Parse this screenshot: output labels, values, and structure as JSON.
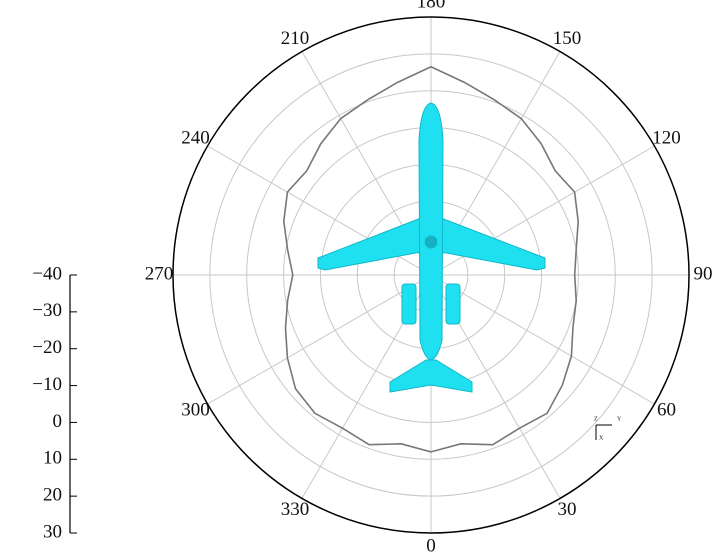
{
  "chart_data": {
    "type": "polar-line",
    "theta": [
      0,
      10,
      20,
      30,
      40,
      50,
      60,
      70,
      80,
      90,
      100,
      110,
      120,
      130,
      140,
      150,
      160,
      170,
      180,
      190,
      200,
      210,
      220,
      230,
      240,
      250,
      260,
      270,
      280,
      290,
      300,
      310,
      320,
      330,
      340,
      350
    ],
    "series": [
      {
        "color": "#777777",
        "values": [
          8,
          6.5,
          9,
          8,
          9,
          6.5,
          4,
          1,
          0,
          -1,
          0,
          2.5,
          5,
          4,
          6.5,
          9,
          10.5,
          13,
          16.5,
          13,
          10.5,
          9,
          6.5,
          4,
          5,
          2.5,
          -0.5,
          -2.5,
          -0.5,
          2,
          5,
          8,
          9,
          8,
          9,
          6.5
        ]
      }
    ],
    "thetaticks": [
      0,
      30,
      60,
      90,
      120,
      150,
      180,
      210,
      240,
      270,
      300,
      330
    ],
    "rlim": [
      -40,
      30
    ],
    "rticks": [
      {
        "value": -40,
        "label": "−40"
      },
      {
        "value": -30,
        "label": "−30"
      },
      {
        "value": -20,
        "label": "−20"
      },
      {
        "value": -10,
        "label": "−10"
      },
      0,
      10,
      20,
      30
    ],
    "grid": true,
    "axis_triad_labels": [
      "Z",
      "Y",
      "X"
    ]
  }
}
